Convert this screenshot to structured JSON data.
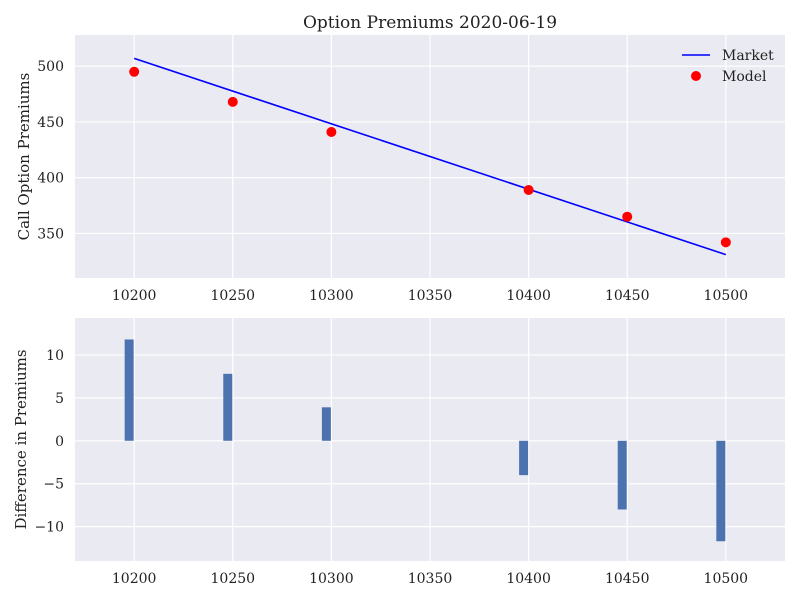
{
  "chart_data": [
    {
      "type": "line",
      "title": "Option Premiums 2020-06-19",
      "xlabel": "",
      "ylabel": "Call Option Premiums",
      "xlim": [
        10170,
        10530
      ],
      "ylim": [
        310,
        528
      ],
      "xticks": [
        10200,
        10250,
        10300,
        10350,
        10400,
        10450,
        10500
      ],
      "yticks": [
        350,
        400,
        450,
        500
      ],
      "grid": true,
      "legend": "top-right",
      "series": [
        {
          "name": "Market",
          "kind": "line",
          "color": "#0000ff",
          "x": [
            10200,
            10500
          ],
          "y": [
            507,
            331
          ]
        },
        {
          "name": "Model",
          "kind": "scatter",
          "color": "#ff0000",
          "x": [
            10200,
            10250,
            10300,
            10400,
            10450,
            10500
          ],
          "y": [
            495,
            468,
            441,
            389,
            365,
            342
          ]
        }
      ]
    },
    {
      "type": "bar",
      "title": "",
      "xlabel": "",
      "ylabel": "Difference in Premiums",
      "xlim": [
        10170,
        10530
      ],
      "ylim": [
        -14,
        14.3
      ],
      "xticks": [
        10200,
        10250,
        10300,
        10350,
        10400,
        10450,
        10500
      ],
      "yticks": [
        -10,
        -5,
        0,
        5,
        10
      ],
      "grid": true,
      "color": "#4c72b0",
      "x": [
        10200,
        10250,
        10300,
        10400,
        10450,
        10500
      ],
      "values": [
        11.8,
        7.8,
        3.9,
        -4.0,
        -8.0,
        -11.7
      ]
    }
  ]
}
